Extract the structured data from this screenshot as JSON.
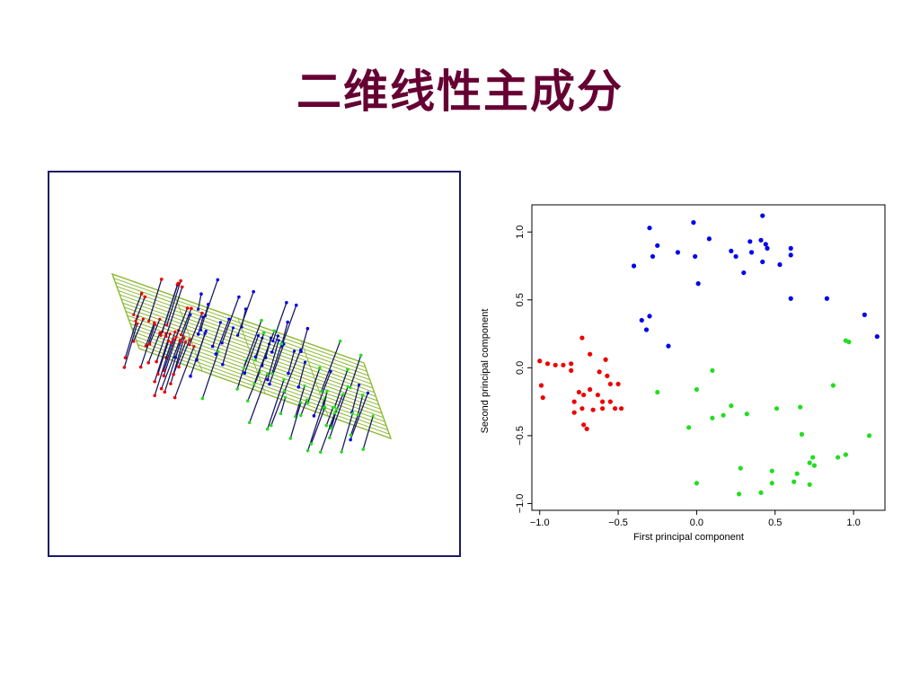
{
  "slide": {
    "title": "二维线性主成分"
  },
  "panel_3d": {
    "plane_color": "#8db832",
    "line_color": "#1a1a66"
  },
  "chart_data": {
    "type": "scatter",
    "xlabel": "First principal component",
    "ylabel": "Second principal component",
    "xlim": [
      -1.05,
      1.2
    ],
    "ylim": [
      -1.05,
      1.2
    ],
    "xticks": [
      -1.0,
      -0.5,
      0.0,
      0.5,
      1.0
    ],
    "yticks": [
      -1.0,
      -0.5,
      0.0,
      0.5,
      1.0
    ],
    "xtick_labels": [
      "−1.0",
      "−0.5",
      "0.0",
      "0.5",
      "1.0"
    ],
    "ytick_labels": [
      "−1.0",
      "−0.5",
      "0.0",
      "0.5",
      "1.0"
    ],
    "grid": false,
    "series": [
      {
        "color": "#0000ee",
        "points": [
          [
            -0.3,
            1.03
          ],
          [
            -0.02,
            1.07
          ],
          [
            0.42,
            1.12
          ],
          [
            -0.25,
            0.9
          ],
          [
            -0.28,
            0.82
          ],
          [
            -0.01,
            0.82
          ],
          [
            0.08,
            0.95
          ],
          [
            0.22,
            0.86
          ],
          [
            0.25,
            0.82
          ],
          [
            0.35,
            0.85
          ],
          [
            0.34,
            0.93
          ],
          [
            0.41,
            0.94
          ],
          [
            0.44,
            0.91
          ],
          [
            0.45,
            0.88
          ],
          [
            0.3,
            0.7
          ],
          [
            0.42,
            0.78
          ],
          [
            0.53,
            0.76
          ],
          [
            0.6,
            0.88
          ],
          [
            0.6,
            0.83
          ],
          [
            -0.4,
            0.75
          ],
          [
            -0.12,
            0.85
          ],
          [
            0.01,
            0.62
          ],
          [
            0.6,
            0.51
          ],
          [
            0.83,
            0.51
          ],
          [
            -0.35,
            0.35
          ],
          [
            -0.3,
            0.38
          ],
          [
            -0.32,
            0.28
          ],
          [
            -0.18,
            0.16
          ],
          [
            1.07,
            0.39
          ],
          [
            1.15,
            0.23
          ]
        ]
      },
      {
        "color": "#ee0000",
        "points": [
          [
            -1.0,
            0.05
          ],
          [
            -0.95,
            0.03
          ],
          [
            -0.9,
            0.02
          ],
          [
            -0.85,
            0.02
          ],
          [
            -0.8,
            0.03
          ],
          [
            -0.8,
            -0.02
          ],
          [
            -0.99,
            -0.13
          ],
          [
            -0.98,
            -0.22
          ],
          [
            -0.73,
            0.22
          ],
          [
            -0.68,
            0.1
          ],
          [
            -0.62,
            -0.03
          ],
          [
            -0.58,
            0.06
          ],
          [
            -0.57,
            -0.06
          ],
          [
            -0.55,
            -0.12
          ],
          [
            -0.5,
            -0.12
          ],
          [
            -0.75,
            -0.18
          ],
          [
            -0.72,
            -0.2
          ],
          [
            -0.68,
            -0.16
          ],
          [
            -0.63,
            -0.2
          ],
          [
            -0.6,
            -0.25
          ],
          [
            -0.78,
            -0.25
          ],
          [
            -0.73,
            -0.3
          ],
          [
            -0.66,
            -0.31
          ],
          [
            -0.6,
            -0.3
          ],
          [
            -0.52,
            -0.3
          ],
          [
            -0.48,
            -0.3
          ],
          [
            -0.55,
            -0.25
          ],
          [
            -0.78,
            -0.33
          ],
          [
            -0.72,
            -0.42
          ],
          [
            -0.7,
            -0.45
          ]
        ]
      },
      {
        "color": "#22dd22",
        "points": [
          [
            0.1,
            -0.02
          ],
          [
            -0.25,
            -0.18
          ],
          [
            0.0,
            -0.16
          ],
          [
            -0.05,
            -0.44
          ],
          [
            0.1,
            -0.37
          ],
          [
            0.17,
            -0.35
          ],
          [
            0.22,
            -0.28
          ],
          [
            0.32,
            -0.34
          ],
          [
            0.51,
            -0.3
          ],
          [
            0.66,
            -0.29
          ],
          [
            0.87,
            -0.13
          ],
          [
            0.95,
            0.2
          ],
          [
            0.97,
            0.19
          ],
          [
            0.67,
            -0.49
          ],
          [
            1.1,
            -0.5
          ],
          [
            0.0,
            -0.85
          ],
          [
            0.28,
            -0.74
          ],
          [
            0.48,
            -0.76
          ],
          [
            0.48,
            -0.85
          ],
          [
            0.27,
            -0.93
          ],
          [
            0.41,
            -0.92
          ],
          [
            0.62,
            -0.84
          ],
          [
            0.64,
            -0.78
          ],
          [
            0.72,
            -0.7
          ],
          [
            0.74,
            -0.66
          ],
          [
            0.75,
            -0.72
          ],
          [
            0.9,
            -0.66
          ],
          [
            0.95,
            -0.64
          ],
          [
            0.72,
            -0.86
          ],
          [
            0.95,
            -0.64
          ]
        ]
      }
    ]
  }
}
